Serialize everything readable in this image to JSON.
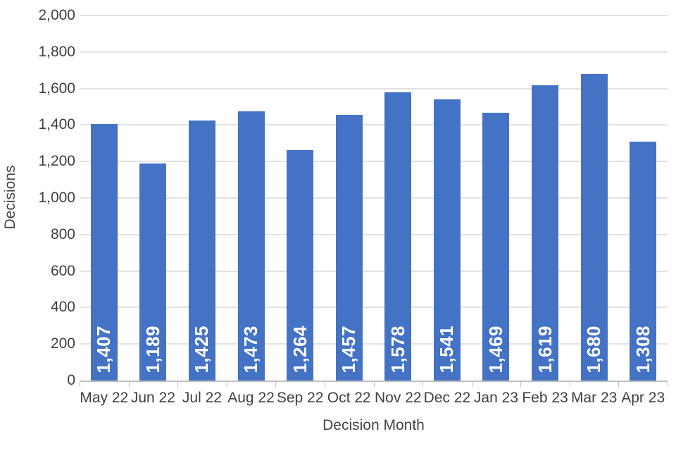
{
  "chart_data": {
    "type": "bar",
    "title": "",
    "xlabel": "Decision Month",
    "ylabel": "Decisions",
    "categories": [
      "May 22",
      "Jun 22",
      "Jul 22",
      "Aug 22",
      "Sep 22",
      "Oct 22",
      "Nov 22",
      "Dec 22",
      "Jan 23",
      "Feb 23",
      "Mar 23",
      "Apr 23"
    ],
    "values": [
      1407,
      1189,
      1425,
      1473,
      1264,
      1457,
      1578,
      1541,
      1469,
      1619,
      1680,
      1308
    ],
    "value_labels": [
      "1,407",
      "1,189",
      "1,425",
      "1,473",
      "1,264",
      "1,457",
      "1,578",
      "1,541",
      "1,469",
      "1,619",
      "1,680",
      "1,308"
    ],
    "ylim": [
      0,
      2000
    ],
    "ytick_step": 200,
    "ytick_labels": [
      "0",
      "200",
      "400",
      "600",
      "800",
      "1,000",
      "1,200",
      "1,400",
      "1,600",
      "1,800",
      "2,000"
    ],
    "grid": true,
    "legend": "none",
    "colors": {
      "bar": "#4472C4",
      "bar_label_text": "#FFFFFF",
      "gridline": "#E2E2E2",
      "axis_line": "#BFBFBF",
      "tick_mark": "#BFBFBF",
      "tick_text": "#404040",
      "axis_title_text": "#454545"
    }
  }
}
